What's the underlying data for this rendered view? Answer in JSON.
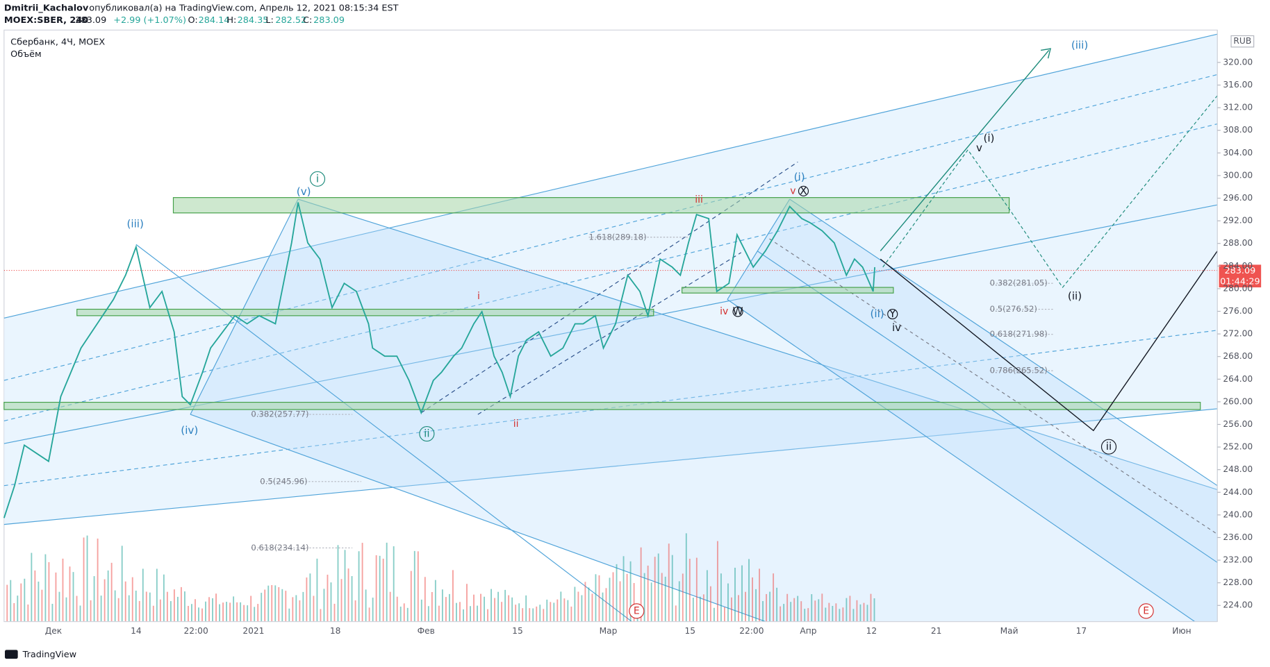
{
  "header": {
    "author": "Dmitrii_Kachalov",
    "published": "опубликовал(а) на TradingView.com, Апрель 12, 2021 08:15:34 EST",
    "symbol": "MOEX:SBER, 240",
    "price": "283.09",
    "change": "+2.99 (+1.07%)",
    "ohlc": [
      {
        "label": "O:",
        "value": "284.14"
      },
      {
        "label": "H:",
        "value": "284.35"
      },
      {
        "label": "L:",
        "value": "282.52"
      },
      {
        "label": "C:",
        "value": "283.09"
      }
    ]
  },
  "legend": {
    "title": "Сбербанк, 4Ч, MOEX",
    "volume": "Объём"
  },
  "price_axis": {
    "currency": "RUB",
    "labels": [
      "320.00",
      "316.00",
      "312.00",
      "308.00",
      "304.00",
      "300.00",
      "296.00",
      "292.00",
      "288.00",
      "284.00",
      "280.00",
      "276.00",
      "272.00",
      "268.00",
      "264.00",
      "260.00",
      "256.00",
      "252.00",
      "248.00",
      "244.00",
      "240.00",
      "236.00",
      "232.00",
      "228.00",
      "224.00"
    ],
    "last_price": "283.09",
    "countdown": "01:44:29"
  },
  "time_axis": {
    "labels": [
      "Дек",
      "14",
      "22:00",
      "2021",
      "18",
      "Фев",
      "15",
      "Мар",
      "15",
      "22:00",
      "Апр",
      "12",
      "21",
      "Май",
      "17",
      "Июн"
    ]
  },
  "annotations": [
    "(iii)",
    "(v)",
    "i",
    "(iv)",
    "ii",
    "i",
    "ii",
    "iii",
    "iv",
    "W",
    "(i)",
    "v",
    "X",
    "(ii)",
    "Y",
    "iv",
    "v",
    "(i)",
    "(ii)",
    "ii",
    "(iii)"
  ],
  "fib_levels": [
    "1.618(289.18)",
    "0.382(257.77)",
    "0.5(245.96)",
    "0.618(234.14)",
    "0.382(281.05)",
    "0.5(276.52)",
    "0.618(271.98)",
    "0.786(265.52)"
  ],
  "events": [
    "E",
    "E"
  ],
  "footer": {
    "brand": "TradingView"
  }
}
